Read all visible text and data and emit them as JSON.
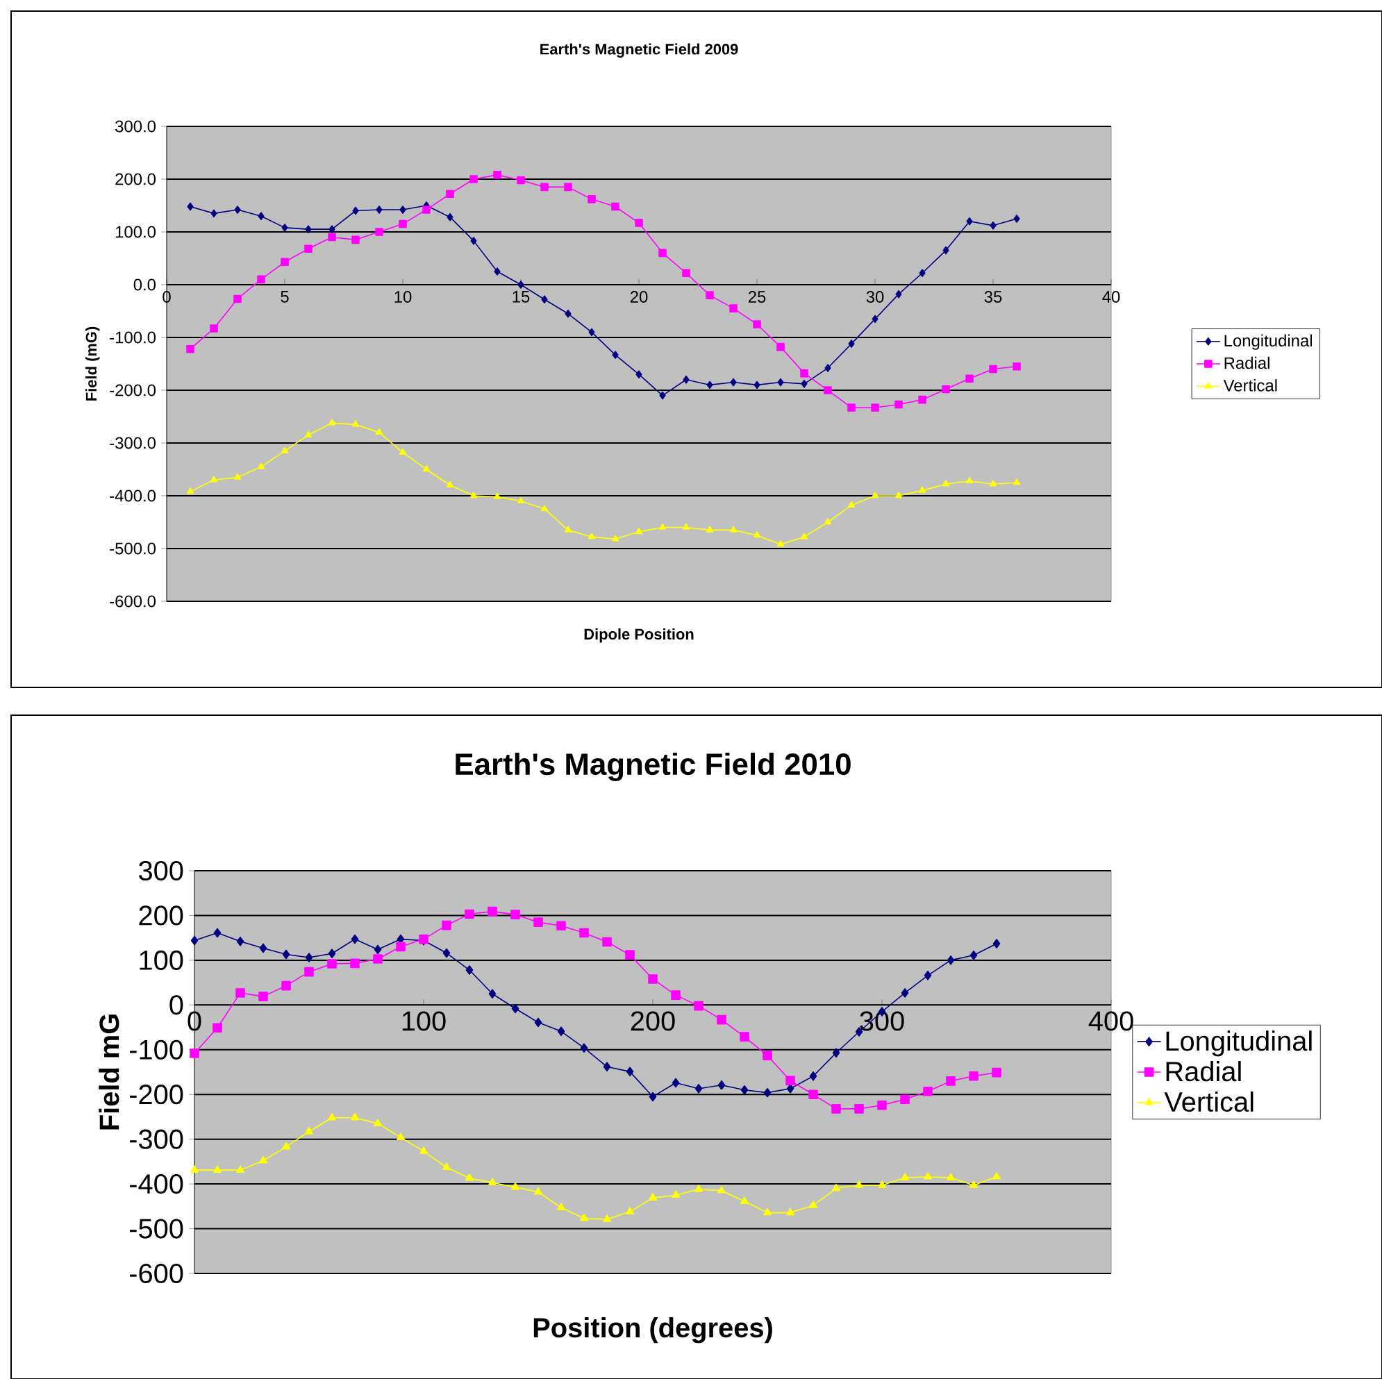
{
  "chart_data": [
    {
      "type": "line",
      "title": "Earth's Magnetic Field 2009",
      "xlabel": "Dipole Position",
      "ylabel": "Field (mG)",
      "x": [
        1,
        2,
        3,
        4,
        5,
        6,
        7,
        8,
        9,
        10,
        11,
        12,
        13,
        14,
        15,
        16,
        17,
        18,
        19,
        20,
        21,
        22,
        23,
        24,
        25,
        26,
        27,
        28,
        29,
        30,
        31,
        32,
        33,
        34,
        35,
        36
      ],
      "xlim": [
        0,
        40
      ],
      "xticks": [
        0,
        5,
        10,
        15,
        20,
        25,
        30,
        35,
        40
      ],
      "ylim": [
        -600,
        300
      ],
      "yticks": [
        {
          "value": -600,
          "label": "-600.0"
        },
        {
          "value": -500,
          "label": "-500.0"
        },
        {
          "value": -400,
          "label": "-400.0"
        },
        {
          "value": -300,
          "label": "-300.0"
        },
        {
          "value": -200,
          "label": "-200.0"
        },
        {
          "value": -100,
          "label": "-100.0"
        },
        {
          "value": 0,
          "label": "0.0"
        },
        {
          "value": 100,
          "label": "100.0"
        },
        {
          "value": 200,
          "label": "200.0"
        },
        {
          "value": 300,
          "label": "300.0"
        }
      ],
      "grid": "y",
      "legend": "right",
      "line_style": "solid",
      "series": [
        {
          "name": "Longitudinal",
          "color": "#000080",
          "marker": "diamond",
          "values": [
            148,
            135,
            142,
            130,
            108,
            105,
            105,
            140,
            142,
            142,
            150,
            128,
            83,
            25,
            0,
            -28,
            -55,
            -90,
            -133,
            -170,
            -210,
            -180,
            -190,
            -185,
            -190,
            -185,
            -188,
            -158,
            -112,
            -65,
            -18,
            22,
            65,
            120,
            112,
            125
          ]
        },
        {
          "name": "Radial",
          "color": "#ff00ff",
          "marker": "square",
          "values": [
            -122,
            -83,
            -27,
            10,
            43,
            68,
            90,
            85,
            100,
            115,
            142,
            172,
            200,
            208,
            198,
            185,
            185,
            162,
            148,
            117,
            60,
            22,
            -20,
            -45,
            -75,
            -118,
            -168,
            -200,
            -233,
            -233,
            -227,
            -218,
            -198,
            -178,
            -160,
            -155
          ]
        },
        {
          "name": "Vertical",
          "color": "#ffff00",
          "marker": "triangle",
          "values": [
            -392,
            -370,
            -365,
            -345,
            -315,
            -285,
            -262,
            -265,
            -280,
            -318,
            -350,
            -380,
            -400,
            -402,
            -410,
            -425,
            -465,
            -478,
            -482,
            -468,
            -460,
            -460,
            -465,
            -465,
            -475,
            -492,
            -478,
            -450,
            -418,
            -400,
            -400,
            -390,
            -378,
            -372,
            -378,
            -375
          ]
        }
      ]
    },
    {
      "type": "line",
      "title": "Earth's Magnetic Field 2010",
      "xlabel": "Position (degrees)",
      "ylabel": "Field mG",
      "x": [
        0,
        10,
        20,
        30,
        40,
        50,
        60,
        70,
        80,
        90,
        100,
        110,
        120,
        130,
        140,
        150,
        160,
        170,
        180,
        190,
        200,
        210,
        220,
        230,
        240,
        250,
        260,
        270,
        280,
        290,
        300,
        310,
        320,
        330,
        340,
        350
      ],
      "xlim": [
        0,
        400
      ],
      "xticks": [
        0,
        100,
        200,
        300,
        400
      ],
      "ylim": [
        -600,
        300
      ],
      "yticks": [
        -600,
        -500,
        -400,
        -300,
        -200,
        -100,
        0,
        100,
        200,
        300
      ],
      "grid": "y",
      "legend": "right",
      "line_style": "solid",
      "series": [
        {
          "name": "Longitudinal",
          "color": "#000080",
          "marker": "diamond",
          "values": [
            144,
            161,
            142,
            127,
            113,
            106,
            115,
            147,
            124,
            147,
            144,
            116,
            78,
            25,
            -8,
            -39,
            -59,
            -96,
            -138,
            -149,
            -205,
            -174,
            -187,
            -179,
            -190,
            -196,
            -187,
            -159,
            -107,
            -60,
            -15,
            27,
            66,
            100,
            111,
            137
          ]
        },
        {
          "name": "Radial",
          "color": "#ff00ff",
          "marker": "square",
          "values": [
            -108,
            -51,
            27,
            19,
            43,
            74,
            92,
            93,
            103,
            130,
            147,
            178,
            203,
            209,
            202,
            185,
            177,
            161,
            141,
            112,
            58,
            22,
            -2,
            -33,
            -71,
            -113,
            -169,
            -200,
            -232,
            -232,
            -224,
            -211,
            -193,
            -170,
            -159,
            -151
          ]
        },
        {
          "name": "Vertical",
          "color": "#ffff00",
          "marker": "triangle",
          "values": [
            -369,
            -369,
            -369,
            -348,
            -317,
            -283,
            -252,
            -252,
            -265,
            -296,
            -327,
            -363,
            -387,
            -397,
            -407,
            -418,
            -453,
            -477,
            -479,
            -462,
            -431,
            -425,
            -412,
            -415,
            -439,
            -464,
            -464,
            -448,
            -410,
            -403,
            -403,
            -386,
            -384,
            -386,
            -403,
            -384
          ]
        }
      ]
    }
  ]
}
